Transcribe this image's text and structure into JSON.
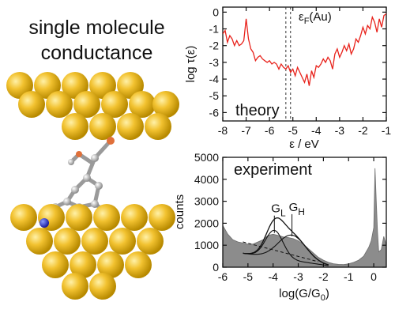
{
  "heading": {
    "line1": "single molecule",
    "line2": "conductance"
  },
  "colors": {
    "gold": "#f2c230",
    "gold_dark": "#b88a00",
    "theory_line": "#e8221b",
    "histogram": "#8c8c8c"
  },
  "chart_data": [
    {
      "type": "line",
      "panel_label": "theory",
      "xlabel": "ε / eV",
      "ylabel": "log τ(ε)",
      "xlim": [
        -8,
        -1
      ],
      "ylim": [
        -6.5,
        0.3
      ],
      "xticks": [
        "-8",
        "-7",
        "-6",
        "-5",
        "-4",
        "-3",
        "-2",
        "-1"
      ],
      "yticks": [
        "0",
        "-1",
        "-2",
        "-3",
        "-4",
        "-5",
        "-6"
      ],
      "annotation": {
        "label": "ε_F(Au)",
        "x": -5.15,
        "dashed_lines_x": [
          -5.3,
          -5.1
        ]
      },
      "grid": false,
      "series": [
        {
          "x": [
            -8.0,
            -7.9,
            -7.8,
            -7.7,
            -7.6,
            -7.5,
            -7.4,
            -7.3,
            -7.2,
            -7.1,
            -7.0,
            -6.9,
            -6.8,
            -6.7,
            -6.6,
            -6.5,
            -6.4,
            -6.3,
            -6.2,
            -6.1,
            -6.0,
            -5.9,
            -5.8,
            -5.7,
            -5.6,
            -5.5,
            -5.4,
            -5.3,
            -5.2,
            -5.1,
            -5.0,
            -4.9,
            -4.8,
            -4.7,
            -4.6,
            -4.5,
            -4.4,
            -4.3,
            -4.2,
            -4.1,
            -4.0,
            -3.9,
            -3.8,
            -3.7,
            -3.6,
            -3.5,
            -3.4,
            -3.3,
            -3.2,
            -3.1,
            -3.0,
            -2.9,
            -2.8,
            -2.7,
            -2.6,
            -2.5,
            -2.4,
            -2.3,
            -2.2,
            -2.1,
            -2.0,
            -1.9,
            -1.8,
            -1.7,
            -1.6,
            -1.5,
            -1.4,
            -1.3,
            -1.2,
            -1.1,
            -1.0
          ],
          "y": [
            -1.3,
            -1.1,
            -1.8,
            -1.4,
            -1.6,
            -2.0,
            -1.7,
            -2.0,
            -1.9,
            -1.7,
            -0.4,
            -1.6,
            -2.2,
            -2.4,
            -2.9,
            -2.7,
            -2.6,
            -2.8,
            -2.9,
            -3.0,
            -2.9,
            -3.1,
            -3.0,
            -3.1,
            -3.4,
            -3.1,
            -3.3,
            -3.4,
            -3.2,
            -3.6,
            -3.4,
            -3.8,
            -3.3,
            -3.6,
            -3.9,
            -4.2,
            -3.7,
            -4.4,
            -3.5,
            -3.9,
            -3.2,
            -3.3,
            -3.1,
            -2.8,
            -3.0,
            -2.7,
            -2.9,
            -3.4,
            -2.5,
            -2.2,
            -2.7,
            -2.4,
            -2.0,
            -2.3,
            -1.9,
            -2.5,
            -2.2,
            -1.6,
            -1.8,
            -1.4,
            -0.9,
            -1.3,
            -0.8,
            -1.0,
            -0.3,
            -0.6,
            -1.2,
            -0.4,
            -0.9,
            -0.2,
            -0.1
          ]
        }
      ]
    },
    {
      "type": "area",
      "panel_label": "experiment",
      "xlabel": "log(G/G₀)",
      "ylabel": "counts",
      "xlim": [
        -6,
        0.5
      ],
      "ylim": [
        0,
        5000
      ],
      "xticks": [
        "-6",
        "-5",
        "-4",
        "-3",
        "-2",
        "-1",
        "0"
      ],
      "yticks": [
        "0",
        "1000",
        "2000",
        "3000",
        "4000",
        "5000"
      ],
      "peak_labels": [
        {
          "label": "G_L",
          "x": -3.95,
          "y": 1700
        },
        {
          "label": "G_H",
          "x": -3.25,
          "y": 1550
        }
      ],
      "grid": false,
      "histogram": {
        "x": [
          -6.0,
          -5.8,
          -5.6,
          -5.4,
          -5.2,
          -5.0,
          -4.8,
          -4.6,
          -4.4,
          -4.2,
          -4.0,
          -3.8,
          -3.6,
          -3.4,
          -3.2,
          -3.0,
          -2.8,
          -2.6,
          -2.4,
          -2.2,
          -2.0,
          -1.8,
          -1.6,
          -1.4,
          -1.2,
          -1.0,
          -0.8,
          -0.6,
          -0.4,
          -0.3,
          -0.2,
          -0.1,
          0.0,
          0.05,
          0.1,
          0.15,
          0.2,
          0.3,
          0.4,
          0.5
        ],
        "y": [
          1900,
          1500,
          1250,
          1150,
          1100,
          1050,
          1050,
          1150,
          1250,
          1450,
          1500,
          1450,
          1380,
          1350,
          1300,
          1200,
          1050,
          850,
          650,
          450,
          320,
          220,
          160,
          130,
          120,
          150,
          220,
          320,
          500,
          700,
          900,
          1200,
          1800,
          4500,
          3000,
          1600,
          700,
          800,
          1400,
          1000
        ]
      },
      "fits": [
        {
          "name": "G_L",
          "center": -3.95,
          "amplitude": 1250,
          "width": 0.35
        },
        {
          "name": "G_H",
          "center": -3.25,
          "amplitude": 1150,
          "width": 0.55
        }
      ]
    }
  ]
}
